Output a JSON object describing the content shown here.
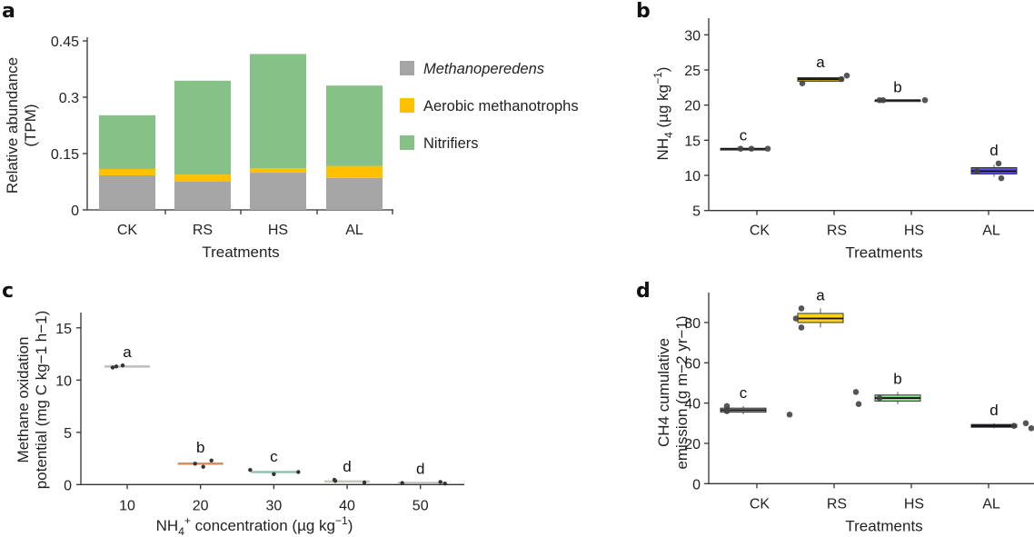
{
  "figure": {
    "panels": [
      "a",
      "b",
      "c",
      "d"
    ]
  },
  "chart_data": [
    {
      "panel": "a",
      "type": "bar",
      "stacked": true,
      "title": "",
      "xlabel": "Treatments",
      "ylabel_lines": [
        "Relative abundance",
        "(TPM)"
      ],
      "categories": [
        "CK",
        "RS",
        "HS",
        "AL"
      ],
      "ylim": [
        0,
        0.45
      ],
      "yticks": [
        0,
        0.15,
        0.3,
        0.45
      ],
      "ytick_labels": [
        "0",
        "0.15",
        "0.3",
        "0.45"
      ],
      "legend_position": "right",
      "series": [
        {
          "name": "Methanoperedens",
          "italic": true,
          "color": "#a6a6a6",
          "values": [
            0.092,
            0.075,
            0.099,
            0.085
          ]
        },
        {
          "name": "Aerobic methanotrophs",
          "italic": false,
          "color": "#ffc000",
          "values": [
            0.017,
            0.019,
            0.012,
            0.032
          ]
        },
        {
          "name": "Nitrifiers",
          "italic": false,
          "color": "#86c287",
          "values": [
            0.143,
            0.25,
            0.304,
            0.214
          ]
        }
      ]
    },
    {
      "panel": "b",
      "type": "box",
      "xlabel": "Treatments",
      "ylabel": "NH4 (µg kg−1)",
      "ylabel_parts": {
        "main": "NH",
        "sub": "4",
        "unit": " (µg kg",
        "sup": "−1",
        "close": ")"
      },
      "categories": [
        "CK",
        "RS",
        "HS",
        "AL"
      ],
      "ylim": [
        5,
        32
      ],
      "yticks": [
        5,
        10,
        15,
        20,
        25,
        30
      ],
      "groups": [
        {
          "category": "CK",
          "color": "#7f7f7f",
          "q1": 13.8,
          "median": 13.8,
          "q3": 13.8,
          "whisker_low": 13.8,
          "whisker_high": 13.8,
          "points": [
            13.8,
            13.8,
            13.8
          ],
          "letter": "c"
        },
        {
          "category": "RS",
          "color": "#c9a21a",
          "q1": 23.4,
          "median": 23.7,
          "q3": 23.9,
          "whisker_low": 23.3,
          "whisker_high": 24.0,
          "points": [
            23.1,
            23.7,
            24.2
          ],
          "letter": "a"
        },
        {
          "category": "HS",
          "color": "#7f7f7f",
          "q1": 20.7,
          "median": 20.7,
          "q3": 20.7,
          "whisker_low": 20.7,
          "whisker_high": 20.7,
          "points": [
            20.7,
            20.7,
            20.7
          ],
          "letter": "b"
        },
        {
          "category": "AL",
          "color": "#5a4ee0",
          "q1": 10.2,
          "median": 10.6,
          "q3": 11.1,
          "whisker_low": 9.8,
          "whisker_high": 11.5,
          "points": [
            10.6,
            11.7,
            9.6
          ],
          "letter": "d"
        }
      ]
    },
    {
      "panel": "c",
      "type": "box",
      "xlabel": "NH4+ concentration (µg kg−1)",
      "xlabel_parts": {
        "main": "NH",
        "sub": "4",
        "sup1": "+",
        "rest": " concentration (µg kg",
        "sup": "−1",
        "close": ")"
      },
      "ylabel_lines": [
        "Methane oxidation",
        "potential (mg C kg−1 h−1)"
      ],
      "categories": [
        "10",
        "20",
        "30",
        "40",
        "50"
      ],
      "x_values": [
        10,
        20,
        30,
        40,
        50
      ],
      "xlim": [
        3.5,
        55
      ],
      "ylim": [
        0,
        16.5
      ],
      "yticks": [
        0,
        5,
        10,
        15
      ],
      "groups": [
        {
          "category": "10",
          "color": "#bdbdbd",
          "median": 11.3,
          "q1": 11.25,
          "q3": 11.35,
          "points": [
            11.2,
            11.3,
            11.4
          ],
          "letter": "a"
        },
        {
          "category": "20",
          "color": "#d98c5a",
          "median": 2.0,
          "q1": 1.9,
          "q3": 2.1,
          "points": [
            2.0,
            1.7,
            2.3
          ],
          "letter": "b"
        },
        {
          "category": "30",
          "color": "#8fc4b4",
          "median": 1.2,
          "q1": 1.1,
          "q3": 1.25,
          "points": [
            1.4,
            1.0,
            1.2
          ],
          "letter": "c"
        },
        {
          "category": "40",
          "color": "#c8c8c0",
          "median": 0.3,
          "q1": 0.25,
          "q3": 0.35,
          "points": [
            0.45,
            0.35,
            0.2
          ],
          "letter": "d"
        },
        {
          "category": "50",
          "color": "#bdbdbd",
          "median": 0.15,
          "q1": 0.1,
          "q3": 0.2,
          "points": [
            0.15,
            0.25,
            0.1
          ],
          "letter": "d"
        }
      ]
    },
    {
      "panel": "d",
      "type": "box",
      "xlabel": "Treatments",
      "ylabel_lines": [
        "CH4 cumulative",
        "emission (g m−2 yr−1)"
      ],
      "categories": [
        "CK",
        "RS",
        "HS",
        "AL"
      ],
      "ylim": [
        0,
        95
      ],
      "yticks": [
        0,
        20,
        40,
        60,
        80
      ],
      "groups": [
        {
          "category": "CK",
          "color": "#a6a6a6",
          "q1": 35.5,
          "median": 36.5,
          "q3": 37.5,
          "whisker_low": 34.5,
          "whisker_high": 38.5,
          "points": [
            38.5,
            36.5,
            36.0,
            34.3
          ],
          "letter": "c"
        },
        {
          "category": "RS",
          "color": "#ffd21a",
          "q1": 80.0,
          "median": 82.0,
          "q3": 84.5,
          "whisker_low": 77.5,
          "whisker_high": 87.0,
          "points": [
            87.0,
            82.0,
            77.5
          ],
          "letter": "a"
        },
        {
          "category": "HS",
          "color": "#8ee38e",
          "q1": 41.0,
          "median": 42.5,
          "q3": 44.0,
          "whisker_low": 39.5,
          "whisker_high": 45.5,
          "points": [
            45.5,
            39.5,
            42.5
          ],
          "letter": "b"
        },
        {
          "category": "AL",
          "color": "#1b1b3a",
          "q1": 28.0,
          "median": 28.7,
          "q3": 29.4,
          "whisker_low": 27.5,
          "whisker_high": 30.0,
          "points": [
            28.7,
            30.0,
            27.5
          ],
          "letter": "d"
        }
      ]
    }
  ]
}
